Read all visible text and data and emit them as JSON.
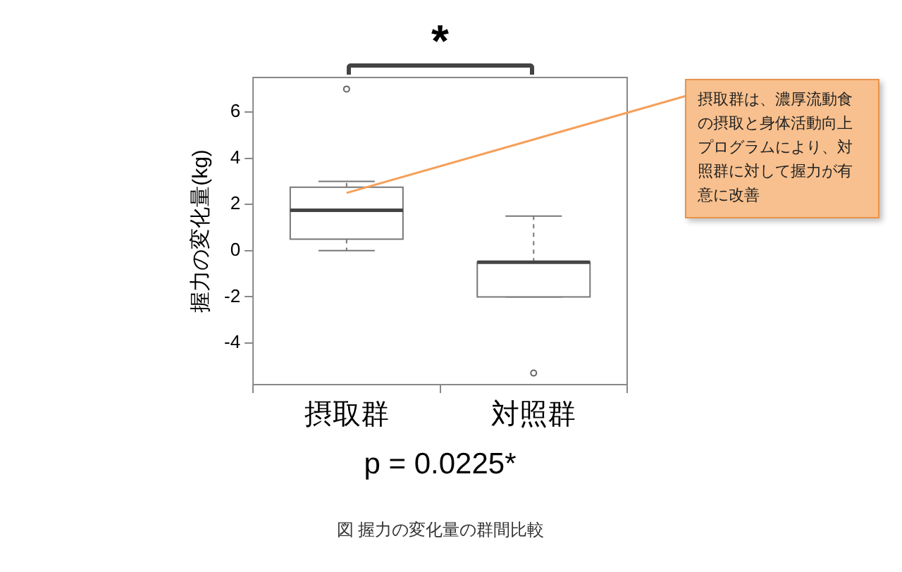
{
  "chart_data": {
    "type": "box",
    "ylabel": "握力の変化量(kg)",
    "categories": [
      "摂取群",
      "対照群"
    ],
    "boxes": [
      {
        "low": 0,
        "q1": 0.5,
        "median": 1.75,
        "q3": 2.75,
        "high": 3,
        "outliers": [
          7
        ]
      },
      {
        "low": -2,
        "q1": -2,
        "median": -0.5,
        "q3": -0.5,
        "high": 1.5,
        "outliers": [
          -5.3
        ]
      }
    ],
    "ylim": [
      -5.8,
      7.5
    ],
    "yticks": [
      -4,
      -2,
      0,
      2,
      4,
      6
    ],
    "grid": false,
    "legend": false,
    "annotations": [
      "*",
      {
        "text": "摂取群は、濃厚流動食の摂取と身体活動向上プログラムにより、対照群に対して握力が有意に改善",
        "x": "摂取群",
        "y": 2.5
      },
      "p = 0.0225*",
      "図 握力の変化量の群間比較"
    ]
  }
}
